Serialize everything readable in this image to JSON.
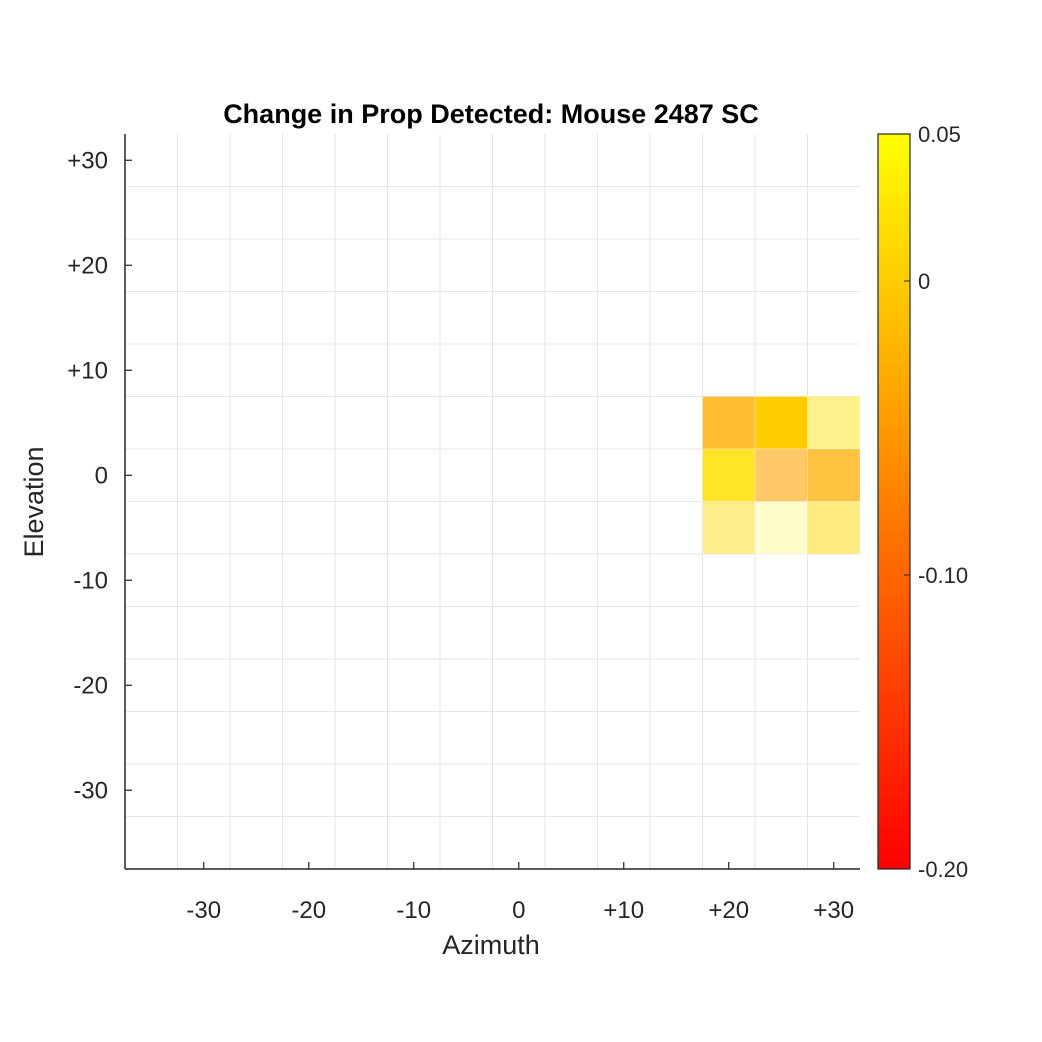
{
  "chart_data": {
    "type": "heatmap",
    "title": "Change in Prop Detected: Mouse 2487 SC",
    "xlabel": "Azimuth",
    "ylabel": "Elevation",
    "xlim": [
      -37.5,
      32.5
    ],
    "ylim": [
      -37.5,
      32.5
    ],
    "x_ticks": [
      -30,
      -20,
      -10,
      0,
      10,
      20,
      30
    ],
    "x_tick_labels": [
      "-30",
      "-20",
      "-10",
      "0",
      "+10",
      "+20",
      "+30"
    ],
    "y_ticks": [
      30,
      20,
      10,
      0,
      -10,
      -20,
      -30
    ],
    "y_tick_labels": [
      "+30",
      "+20",
      "+10",
      "0",
      "-10",
      "-20",
      "-30"
    ],
    "grid": true,
    "cell_size": 5,
    "colormap": "autumn",
    "color_low": "#ff0000",
    "color_high": "#ffff00",
    "clim": [
      -0.2,
      0.05
    ],
    "colorbar": {
      "placement": "right",
      "ticks": [
        0.05,
        0,
        -0.1,
        -0.2
      ],
      "tick_labels": [
        "0.05",
        "0",
        "-0.10",
        "-0.20"
      ]
    },
    "cells": [
      {
        "azimuth": 20,
        "elevation": 5,
        "value": -0.03,
        "alpha": 0.8
      },
      {
        "azimuth": 25,
        "elevation": 5,
        "value": 0.0,
        "alpha": 1.0
      },
      {
        "azimuth": 30,
        "elevation": 5,
        "value": 0.02,
        "alpha": 0.45
      },
      {
        "azimuth": 20,
        "elevation": 0,
        "value": 0.02,
        "alpha": 0.85
      },
      {
        "azimuth": 25,
        "elevation": 0,
        "value": -0.04,
        "alpha": 0.6
      },
      {
        "azimuth": 30,
        "elevation": 0,
        "value": -0.03,
        "alpha": 0.75
      },
      {
        "azimuth": 20,
        "elevation": -5,
        "value": 0.01,
        "alpha": 0.45
      },
      {
        "azimuth": 25,
        "elevation": -5,
        "value": 0.04,
        "alpha": 0.2
      },
      {
        "azimuth": 30,
        "elevation": -5,
        "value": 0.01,
        "alpha": 0.5
      }
    ]
  }
}
